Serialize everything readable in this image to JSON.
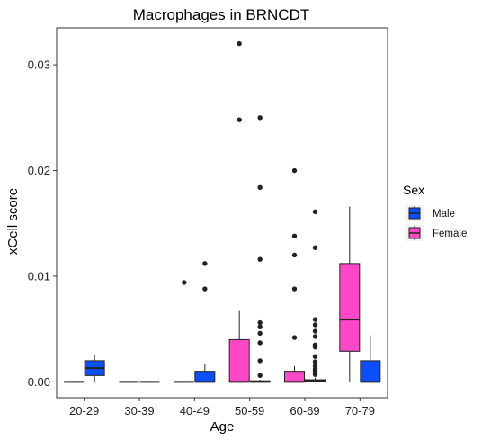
{
  "chart_data": {
    "type": "box",
    "title": "Macrophages in BRNCDT",
    "xlabel": "Age",
    "ylabel": "xCell score",
    "ylim": [
      -0.0015,
      0.0335
    ],
    "yticks": [
      0.0,
      0.01,
      0.02,
      0.03
    ],
    "ytick_labels": [
      "0.00",
      "0.01",
      "0.02",
      "0.03"
    ],
    "grid": false,
    "legend": {
      "title": "Sex",
      "placement": "right"
    },
    "categories": [
      "20-29",
      "30-39",
      "40-49",
      "50-59",
      "60-69",
      "70-79"
    ],
    "series": [
      {
        "name": "Male",
        "color": "#0b4fff",
        "boxes": [
          {
            "category": "20-29",
            "min": 0.0,
            "q1": 0.0006,
            "median": 0.0013,
            "q3": 0.002,
            "max": 0.0025,
            "outliers": []
          },
          {
            "category": "30-39",
            "min": 0.0,
            "q1": 0.0,
            "median": 0.0,
            "q3": 0.0,
            "max": 0.0,
            "outliers": []
          },
          {
            "category": "40-49",
            "min": 0.0,
            "q1": 0.0,
            "median": 0.0,
            "q3": 0.001,
            "max": 0.0017,
            "outliers": [
              0.0088,
              0.0112
            ]
          },
          {
            "category": "50-59",
            "min": 0.0,
            "q1": 0.0,
            "median": 0.0,
            "q3": 0.0001,
            "max": 0.0002,
            "outliers": [
              0.025,
              0.0184,
              0.0116,
              0.0056,
              0.0052,
              0.0046,
              0.0037,
              0.002,
              0.0006
            ]
          },
          {
            "category": "60-69",
            "min": 0.0,
            "q1": 0.0,
            "median": 0.0001,
            "q3": 0.0002,
            "max": 0.0004,
            "outliers": [
              0.0161,
              0.0127,
              0.0059,
              0.0054,
              0.0048,
              0.0043,
              0.0035,
              0.0033,
              0.0024,
              0.0019,
              0.0015,
              0.0012,
              0.001,
              0.0007
            ]
          },
          {
            "category": "70-79",
            "min": 0.0,
            "q1": 0.0,
            "median": 0.0,
            "q3": 0.002,
            "max": 0.0044,
            "outliers": []
          }
        ]
      },
      {
        "name": "Female",
        "color": "#ff47c8",
        "boxes": [
          {
            "category": "20-29",
            "min": 0.0,
            "q1": 0.0,
            "median": 0.0,
            "q3": 0.0,
            "max": 0.0,
            "outliers": []
          },
          {
            "category": "30-39",
            "min": 0.0,
            "q1": 0.0,
            "median": 0.0,
            "q3": 0.0,
            "max": 0.0,
            "outliers": []
          },
          {
            "category": "40-49",
            "min": 0.0,
            "q1": 0.0,
            "median": 0.0,
            "q3": 0.0,
            "max": 0.0,
            "outliers": [
              0.0094
            ]
          },
          {
            "category": "50-59",
            "min": 0.0,
            "q1": 0.0,
            "median": 0.0,
            "q3": 0.004,
            "max": 0.0067,
            "outliers": [
              0.032,
              0.0248
            ]
          },
          {
            "category": "60-69",
            "min": 0.0,
            "q1": 0.0,
            "median": 0.0,
            "q3": 0.001,
            "max": 0.0015,
            "outliers": [
              0.02,
              0.0138,
              0.012,
              0.0088,
              0.0042
            ]
          },
          {
            "category": "70-79",
            "min": 0.0,
            "q1": 0.0029,
            "median": 0.0059,
            "q3": 0.0112,
            "max": 0.0166,
            "outliers": []
          }
        ]
      }
    ]
  }
}
